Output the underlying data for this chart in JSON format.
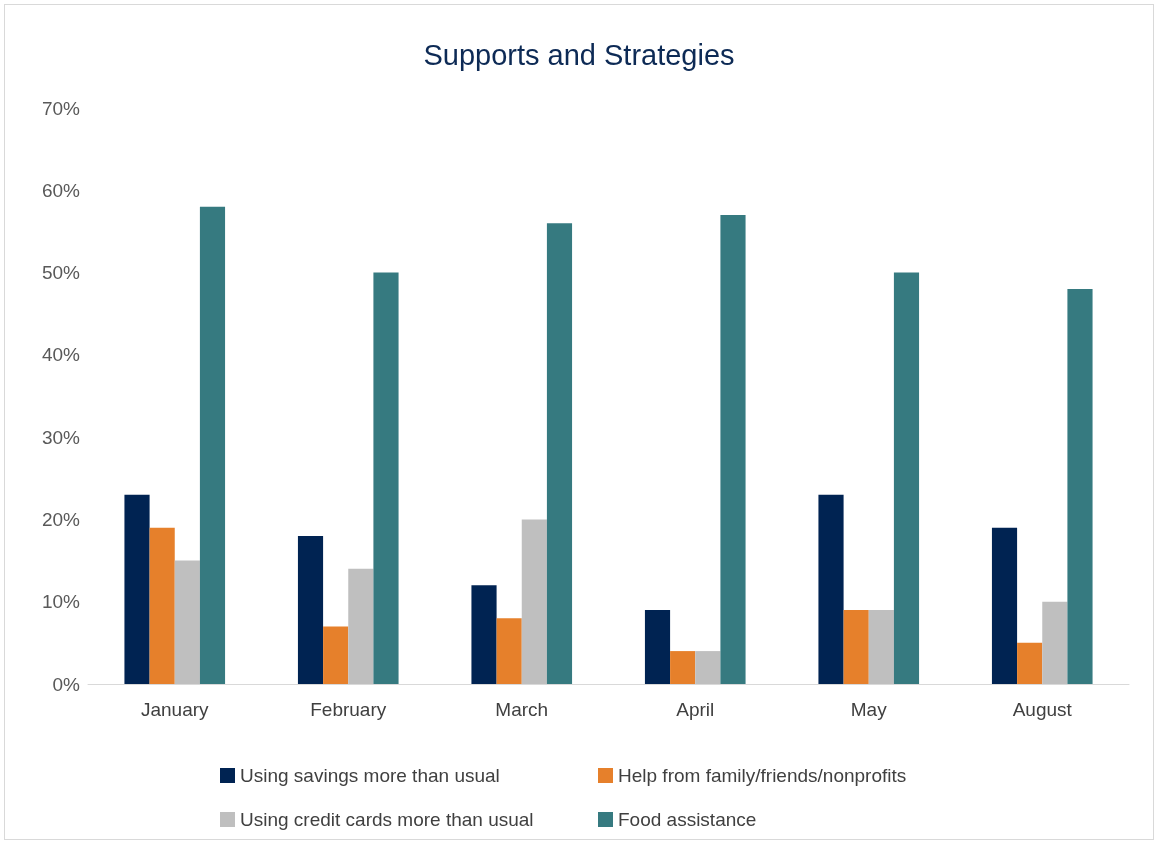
{
  "chart_data": {
    "type": "bar",
    "title": "Supports and Strategies",
    "categories": [
      "January",
      "February",
      "March",
      "April",
      "May",
      "August"
    ],
    "series": [
      {
        "name": "Using savings more than usual",
        "color": "#002352",
        "values": [
          23,
          18,
          12,
          9,
          23,
          19
        ]
      },
      {
        "name": "Help from family/friends/nonprofits",
        "color": "#e6802b",
        "values": [
          19,
          7,
          8,
          4,
          9,
          5
        ]
      },
      {
        "name": "Using credit cards more than usual",
        "color": "#bfbfbf",
        "values": [
          15,
          14,
          20,
          4,
          9,
          10
        ]
      },
      {
        "name": "Food assistance",
        "color": "#367a80",
        "values": [
          58,
          50,
          56,
          57,
          50,
          48
        ]
      }
    ],
    "ylim": [
      0,
      70
    ],
    "yticks": [
      {
        "value": 0,
        "label": "0%"
      },
      {
        "value": 10,
        "label": "10%"
      },
      {
        "value": 20,
        "label": "20%"
      },
      {
        "value": 30,
        "label": "30%"
      },
      {
        "value": 40,
        "label": "40%"
      },
      {
        "value": 50,
        "label": "50%"
      },
      {
        "value": 60,
        "label": "60%"
      },
      {
        "value": 70,
        "label": "70%"
      }
    ],
    "grid": false,
    "legend": "bottom"
  }
}
